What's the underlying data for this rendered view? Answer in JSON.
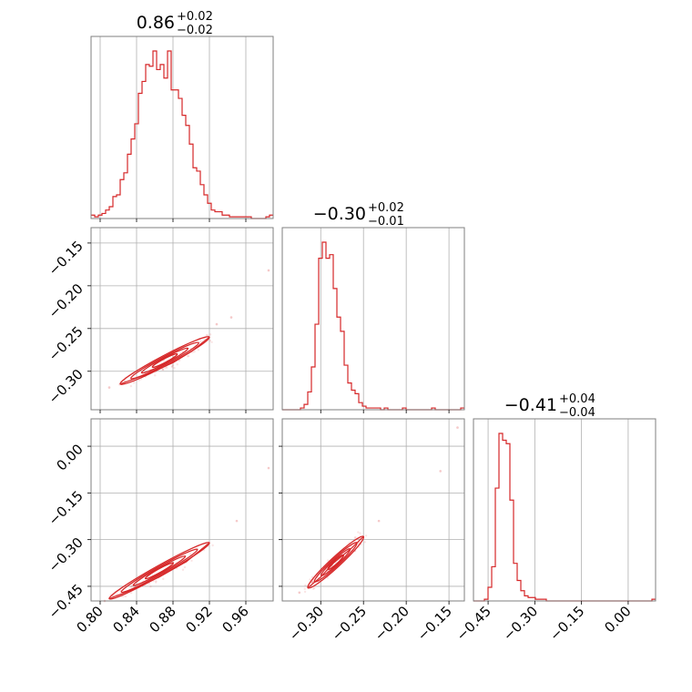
{
  "colors": {
    "line": "#d62728",
    "grid": "#b0b0b0",
    "frame": "#7f7f7f",
    "text": "#000000"
  },
  "chart_data": {
    "type": "corner",
    "parameters": [
      {
        "range": [
          0.79,
          0.99
        ],
        "ticks": [
          0.8,
          0.84,
          0.88,
          0.92,
          0.96
        ],
        "tick_labels": [
          "0.80",
          "0.84",
          "0.88",
          "0.92",
          "0.96"
        ],
        "title": {
          "main": "0.86",
          "plus": "+0.02",
          "minus": "−0.02"
        }
      },
      {
        "range": [
          -0.345,
          -0.132
        ],
        "ticks": [
          -0.3,
          -0.25,
          -0.2,
          -0.15
        ],
        "tick_labels": [
          "−0.30",
          "−0.25",
          "−0.20",
          "−0.15"
        ],
        "title": {
          "main": "−0.30",
          "plus": "+0.02",
          "minus": "−0.01"
        }
      },
      {
        "range": [
          -0.497,
          0.088
        ],
        "ticks": [
          -0.45,
          -0.3,
          -0.15,
          0.0
        ],
        "tick_labels": [
          "−0.45",
          "−0.30",
          "−0.15",
          "0.00"
        ],
        "title": {
          "main": "−0.41",
          "plus": "+0.04",
          "minus": "−0.04"
        }
      }
    ],
    "histograms": [
      {
        "bins_range": [
          0.79,
          0.99
        ],
        "counts": [
          2,
          1,
          2,
          3,
          5,
          7,
          13,
          14,
          23,
          27,
          38,
          47,
          56,
          74,
          81,
          91,
          90,
          99,
          88,
          91,
          83,
          99,
          76,
          76,
          71,
          61,
          55,
          44,
          30,
          28,
          20,
          14,
          9,
          5,
          4,
          4,
          2,
          2,
          1,
          1,
          1,
          1,
          1,
          1,
          0,
          0,
          0,
          0,
          1,
          2
        ]
      },
      {
        "bins_range": [
          -0.345,
          -0.132
        ],
        "counts": [
          0,
          0,
          0,
          0,
          0,
          1,
          3,
          10,
          24,
          48,
          85,
          94,
          85,
          87,
          68,
          52,
          44,
          25,
          15,
          11,
          9,
          4,
          2,
          1,
          1,
          1,
          1,
          0,
          1,
          0,
          0,
          0,
          0,
          1,
          0,
          0,
          0,
          0,
          0,
          0,
          0,
          1,
          0,
          0,
          0,
          0,
          0,
          0,
          0,
          1
        ]
      },
      {
        "bins_range": [
          -0.497,
          0.088
        ],
        "counts": [
          0,
          0,
          0,
          1,
          8,
          20,
          66,
          98,
          94,
          92,
          59,
          22,
          12,
          6,
          3,
          2,
          2,
          1,
          1,
          1,
          0,
          0,
          0,
          0,
          0,
          0,
          0,
          0,
          0,
          0,
          0,
          0,
          0,
          0,
          0,
          0,
          0,
          0,
          0,
          0,
          0,
          0,
          0,
          0,
          0,
          0,
          0,
          0,
          0,
          1
        ]
      }
    ],
    "contours_2d": [
      {
        "x_param": 0,
        "y_param": 1,
        "trend": [
          [
            0.822,
            -0.315
          ],
          [
            0.855,
            -0.302
          ],
          [
            0.88,
            -0.29
          ],
          [
            0.9,
            -0.277
          ],
          [
            0.92,
            -0.26
          ]
        ],
        "outliers": [
          [
            0.985,
            -0.182
          ],
          [
            0.944,
            -0.237
          ],
          [
            0.81,
            -0.319
          ],
          [
            0.928,
            -0.245
          ]
        ]
      },
      {
        "x_param": 0,
        "y_param": 2,
        "trend": [
          [
            0.81,
            -0.49
          ],
          [
            0.84,
            -0.455
          ],
          [
            0.865,
            -0.42
          ],
          [
            0.895,
            -0.37
          ],
          [
            0.92,
            -0.31
          ]
        ],
        "outliers": [
          [
            0.985,
            -0.07
          ],
          [
            0.95,
            -0.24
          ],
          [
            0.805,
            -0.497
          ]
        ]
      },
      {
        "x_param": 1,
        "y_param": 2,
        "trend": [
          [
            -0.315,
            -0.455
          ],
          [
            -0.3,
            -0.42
          ],
          [
            -0.285,
            -0.375
          ],
          [
            -0.265,
            -0.33
          ],
          [
            -0.25,
            -0.29
          ]
        ],
        "outliers": [
          [
            -0.14,
            0.06
          ],
          [
            -0.16,
            -0.08
          ],
          [
            -0.232,
            -0.24
          ],
          [
            -0.325,
            -0.47
          ]
        ]
      }
    ]
  }
}
